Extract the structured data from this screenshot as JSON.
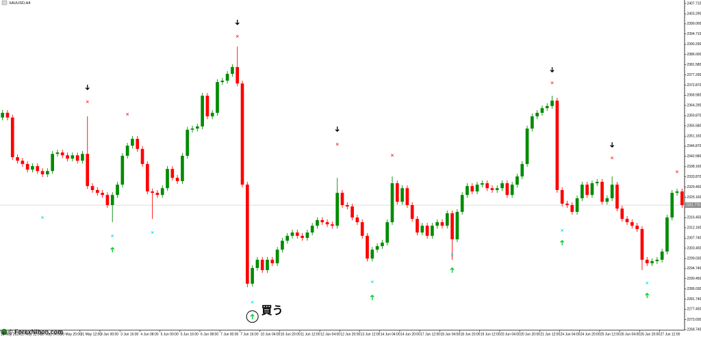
{
  "chart_data": {
    "type": "candlestick",
    "title": "XAUUSD,H4",
    "categories": [
      "28 May 2024",
      null,
      null,
      null,
      "29 May 12:00",
      null,
      null,
      null,
      "30 May 04:00",
      null,
      null,
      null,
      "30 May 20:00",
      null,
      null,
      null,
      "31 May 12:00",
      null,
      null,
      null,
      "3 Jun 00:00",
      null,
      null,
      null,
      "3 Jun 16:00",
      null,
      null,
      null,
      "4 Jun 08:00",
      null,
      null,
      null,
      "5 Jun 00:00",
      null,
      null,
      null,
      "5 Jun 16:00",
      null,
      null,
      null,
      "6 Jun 08:00",
      null,
      null,
      null,
      "7 Jun 00:00",
      null,
      null,
      null,
      "7 Jun 16:00",
      null,
      null,
      null,
      "10 Jun 04:00",
      null,
      null,
      null,
      "10 Jun 20:00",
      null,
      null,
      null,
      "11 Jun 12:00",
      null,
      null,
      null,
      "12 Jun 04:00",
      null,
      null,
      null,
      "12 Jun 20:00",
      null,
      null,
      null,
      "13 Jun 12:00",
      null,
      null,
      null,
      "14 Jun 04:00",
      null,
      null,
      null,
      "14 Jun 20:00",
      null,
      null,
      null,
      "17 Jun 12:00",
      null,
      null,
      null,
      "18 Jun 04:00",
      null,
      null,
      null,
      "18 Jun 20:00",
      null,
      null,
      null,
      "19 Jun 12:00",
      null,
      null,
      null,
      "20 Jun 04:00",
      null,
      null,
      null,
      "20 Jun 20:00",
      null,
      null,
      null,
      "21 Jun 12:00",
      null,
      null,
      null,
      "24 Jun 04:00",
      null,
      null,
      null,
      "24 Jun 20:00",
      null,
      null,
      null,
      "25 Jun 12:00",
      null,
      null,
      null,
      "26 Jun 04:00",
      null,
      null,
      null,
      "26 Jun 20:00",
      null,
      null,
      null,
      "27 Jun 12:00",
      null,
      null,
      null,
      null
    ],
    "open": [
      2359.1,
      2361.1,
      2359.1,
      2342.2,
      2340.7,
      2339.3,
      2336.9,
      2338.4,
      2336.3,
      2334.9,
      2336.3,
      2343.6,
      2344.2,
      2343.0,
      2341.6,
      2343.0,
      2340.7,
      2343.6,
      2329.9,
      2328.2,
      2327.0,
      2326.1,
      2321.8,
      2326.1,
      2330.5,
      2342.8,
      2347.1,
      2350.0,
      2345.7,
      2339.3,
      2327.6,
      2327.0,
      2326.1,
      2329.0,
      2337.2,
      2333.4,
      2332.0,
      2342.8,
      2353.9,
      2354.4,
      2355.3,
      2368.4,
      2359.6,
      2361.1,
      2374.2,
      2374.8,
      2377.7,
      2380.6,
      2373.6,
      2330.5,
      2288.3,
      2295.0,
      2298.5,
      2294.1,
      2298.5,
      2297.0,
      2302.8,
      2306.6,
      2308.7,
      2310.1,
      2308.7,
      2307.8,
      2310.1,
      2313.0,
      2315.4,
      2314.5,
      2313.6,
      2313.0,
      2327.0,
      2321.8,
      2321.2,
      2316.5,
      2314.5,
      2308.7,
      2299.0,
      2302.8,
      2304.3,
      2305.8,
      2314.5,
      2331.1,
      2323.2,
      2329.0,
      2321.8,
      2315.9,
      2310.1,
      2313.0,
      2308.7,
      2313.0,
      2314.5,
      2313.0,
      2318.3,
      2307.2,
      2318.9,
      2326.1,
      2329.9,
      2327.6,
      2330.5,
      2331.1,
      2329.0,
      2328.2,
      2329.0,
      2331.1,
      2326.1,
      2330.5,
      2334.0,
      2339.3,
      2354.4,
      2359.6,
      2361.1,
      2363.1,
      2364.0,
      2366.3,
      2328.2,
      2322.4,
      2321.8,
      2318.9,
      2324.7,
      2330.5,
      2326.1,
      2331.1,
      2331.7,
      2323.2,
      2324.7,
      2330.5,
      2320.3,
      2315.9,
      2314.5,
      2313.0,
      2311.6,
      2298.5,
      2297.0,
      2297.9,
      2298.5,
      2302.0,
      2316.5,
      2327.0,
      2327.6
    ],
    "high": [
      2362.3,
      2362.3,
      2360.3,
      2343.4,
      2341.9,
      2340.5,
      2339.6,
      2339.6,
      2337.5,
      2337.5,
      2344.8,
      2345.4,
      2345.4,
      2344.2,
      2344.2,
      2344.2,
      2344.8,
      2359.6,
      2331.1,
      2329.4,
      2328.2,
      2327.3,
      2327.3,
      2331.7,
      2344.0,
      2348.3,
      2351.2,
      2351.2,
      2346.9,
      2340.5,
      2328.8,
      2328.2,
      2330.2,
      2338.4,
      2338.4,
      2334.6,
      2344.0,
      2355.1,
      2355.6,
      2356.5,
      2369.6,
      2369.6,
      2362.3,
      2375.4,
      2376.0,
      2378.9,
      2381.8,
      2389.3,
      2374.8,
      2331.7,
      2296.2,
      2299.7,
      2299.7,
      2299.7,
      2299.7,
      2304.0,
      2307.8,
      2309.9,
      2311.3,
      2311.3,
      2309.9,
      2311.3,
      2314.2,
      2316.6,
      2316.6,
      2315.7,
      2314.8,
      2333.4,
      2328.2,
      2323.0,
      2322.4,
      2317.7,
      2315.7,
      2309.9,
      2304.0,
      2305.5,
      2307.0,
      2315.7,
      2334.0,
      2332.3,
      2330.2,
      2330.2,
      2323.0,
      2317.1,
      2314.2,
      2314.2,
      2314.2,
      2315.7,
      2315.7,
      2319.5,
      2319.5,
      2320.1,
      2327.3,
      2331.1,
      2331.1,
      2331.7,
      2332.3,
      2332.3,
      2330.2,
      2330.2,
      2332.3,
      2332.3,
      2331.7,
      2335.2,
      2340.5,
      2355.6,
      2360.8,
      2362.3,
      2364.3,
      2365.2,
      2368.4,
      2367.5,
      2329.4,
      2323.6,
      2323.0,
      2325.9,
      2331.7,
      2331.7,
      2332.3,
      2332.9,
      2332.9,
      2325.9,
      2334.0,
      2331.7,
      2321.5,
      2317.1,
      2315.7,
      2314.2,
      2312.8,
      2299.7,
      2299.1,
      2299.7,
      2303.2,
      2317.7,
      2328.2,
      2328.8,
      2328.8
    ],
    "low": [
      2357.9,
      2357.9,
      2341.0,
      2339.5,
      2338.1,
      2335.7,
      2335.7,
      2335.1,
      2333.7,
      2333.7,
      2335.1,
      2342.4,
      2341.8,
      2340.4,
      2340.4,
      2339.5,
      2339.5,
      2328.7,
      2327.0,
      2325.8,
      2324.9,
      2320.6,
      2314.5,
      2324.9,
      2329.3,
      2341.6,
      2345.9,
      2344.5,
      2338.1,
      2326.4,
      2315.9,
      2324.9,
      2324.9,
      2327.8,
      2332.2,
      2330.8,
      2330.8,
      2341.6,
      2352.7,
      2353.2,
      2354.1,
      2358.4,
      2358.4,
      2359.9,
      2373.0,
      2373.6,
      2376.5,
      2372.4,
      2329.3,
      2286.8,
      2287.1,
      2293.8,
      2292.9,
      2292.9,
      2295.8,
      2295.8,
      2301.6,
      2305.4,
      2307.5,
      2307.5,
      2306.6,
      2306.6,
      2308.9,
      2311.8,
      2313.3,
      2312.4,
      2311.8,
      2311.8,
      2320.6,
      2320.0,
      2315.3,
      2313.3,
      2307.5,
      2297.8,
      2297.8,
      2301.6,
      2303.1,
      2304.6,
      2313.3,
      2322.0,
      2322.0,
      2320.6,
      2314.7,
      2308.9,
      2308.9,
      2307.5,
      2307.5,
      2311.8,
      2311.8,
      2311.8,
      2298.5,
      2306.0,
      2317.7,
      2324.9,
      2326.4,
      2326.4,
      2329.3,
      2327.8,
      2327.0,
      2327.0,
      2327.8,
      2324.9,
      2324.9,
      2329.3,
      2332.8,
      2338.1,
      2353.2,
      2358.4,
      2359.9,
      2361.9,
      2362.8,
      2327.0,
      2321.2,
      2320.6,
      2317.7,
      2317.7,
      2323.5,
      2324.9,
      2324.9,
      2329.9,
      2322.0,
      2322.0,
      2323.5,
      2319.1,
      2314.7,
      2313.3,
      2311.8,
      2310.4,
      2294.1,
      2295.8,
      2295.8,
      2296.7,
      2297.3,
      2300.8,
      2315.3,
      2325.8,
      2320.6
    ],
    "close": [
      2361.1,
      2359.1,
      2342.2,
      2340.7,
      2339.3,
      2336.9,
      2338.4,
      2336.3,
      2334.9,
      2336.3,
      2343.6,
      2344.2,
      2343.0,
      2341.6,
      2343.0,
      2340.7,
      2343.6,
      2329.9,
      2328.2,
      2327.0,
      2326.1,
      2321.8,
      2326.1,
      2330.5,
      2342.8,
      2347.1,
      2350.0,
      2345.7,
      2339.3,
      2327.6,
      2327.0,
      2326.1,
      2329.0,
      2337.2,
      2333.4,
      2332.0,
      2342.8,
      2353.9,
      2354.4,
      2355.3,
      2368.4,
      2359.6,
      2361.1,
      2374.2,
      2374.8,
      2377.7,
      2380.6,
      2373.6,
      2330.5,
      2288.3,
      2295.0,
      2298.5,
      2294.1,
      2298.5,
      2297.0,
      2302.8,
      2306.6,
      2308.7,
      2310.1,
      2308.7,
      2307.8,
      2310.1,
      2313.0,
      2315.4,
      2314.5,
      2313.6,
      2313.0,
      2327.0,
      2321.8,
      2321.2,
      2316.5,
      2314.5,
      2308.7,
      2299.0,
      2302.8,
      2304.3,
      2305.8,
      2314.5,
      2331.1,
      2323.2,
      2329.0,
      2321.8,
      2315.9,
      2310.1,
      2313.0,
      2308.7,
      2313.0,
      2314.5,
      2313.0,
      2318.3,
      2307.2,
      2318.9,
      2326.1,
      2329.9,
      2327.6,
      2330.5,
      2331.1,
      2329.0,
      2328.2,
      2329.0,
      2331.1,
      2326.1,
      2330.5,
      2334.0,
      2339.3,
      2354.4,
      2359.6,
      2361.1,
      2363.1,
      2364.0,
      2366.3,
      2328.2,
      2322.4,
      2321.8,
      2318.9,
      2324.7,
      2330.5,
      2326.1,
      2331.1,
      2331.7,
      2323.2,
      2324.7,
      2330.5,
      2320.3,
      2315.9,
      2314.5,
      2313.0,
      2311.6,
      2298.5,
      2297.0,
      2297.9,
      2298.5,
      2302.0,
      2316.5,
      2327.0,
      2327.6,
      2321.8
    ],
    "up_color": "#008c00",
    "down_color": "#ff0000",
    "ylim": [
      2268.5,
      2409.17
    ],
    "yticks": [
      {
        "value": 2407.71,
        "label": "2407.710"
      },
      {
        "value": 2403.29,
        "label": "2403.290"
      },
      {
        "value": 2399.0,
        "label": "2399.000"
      },
      {
        "value": 2394.71,
        "label": "2394.710"
      },
      {
        "value": 2390.29,
        "label": "2390.290"
      },
      {
        "value": 2386.0,
        "label": "2386.000"
      },
      {
        "value": 2381.58,
        "label": "2381.580"
      },
      {
        "value": 2377.29,
        "label": "2377.290"
      },
      {
        "value": 2372.87,
        "label": "2372.870"
      },
      {
        "value": 2368.58,
        "label": "2368.580"
      },
      {
        "value": 2364.29,
        "label": "2364.290"
      },
      {
        "value": 2359.87,
        "label": "2359.870"
      },
      {
        "value": 2355.58,
        "label": "2355.580"
      },
      {
        "value": 2351.16,
        "label": "2351.160"
      },
      {
        "value": 2346.87,
        "label": "2346.870"
      },
      {
        "value": 2342.58,
        "label": "2342.580"
      },
      {
        "value": 2338.16,
        "label": "2338.160"
      },
      {
        "value": 2333.87,
        "label": "2333.870"
      },
      {
        "value": 2329.45,
        "label": "2329.450"
      },
      {
        "value": 2325.16,
        "label": "2325.160"
      },
      {
        "value": 2316.45,
        "label": "2316.450"
      },
      {
        "value": 2312.16,
        "label": "2312.160"
      },
      {
        "value": 2307.74,
        "label": "2307.740"
      },
      {
        "value": 2303.45,
        "label": "2303.450"
      },
      {
        "value": 2299.03,
        "label": "2299.030"
      },
      {
        "value": 2294.74,
        "label": "2294.740"
      },
      {
        "value": 2290.45,
        "label": "2290.450"
      },
      {
        "value": 2286.03,
        "label": "2286.030"
      },
      {
        "value": 2281.74,
        "label": "2281.740"
      },
      {
        "value": 2277.45,
        "label": "2277.450"
      },
      {
        "value": 2273.03,
        "label": "2273.030"
      },
      {
        "value": 2268.74,
        "label": "2268.740"
      }
    ],
    "current_price": 2321.775,
    "signals": {
      "sell_arrows": {
        "color": "#000000",
        "index": [
          17,
          47,
          67,
          110,
          122
        ],
        "values": [
          2371.9,
          2399.6,
          2354.1,
          2379.4,
          2347.4
        ]
      },
      "sell_marks": {
        "color": "#ff3030",
        "index": [
          17,
          25,
          47,
          67,
          78,
          110,
          122,
          135
        ],
        "values": [
          2365.8,
          2360.5,
          2393.7,
          2347.7,
          2343.0,
          2373.9,
          2341.9,
          2336.0
        ]
      },
      "buy_marks": {
        "color": "#00e5ff",
        "index": [
          8,
          22,
          30,
          50,
          74,
          90,
          112,
          129
        ],
        "values": [
          2316.5,
          2308.7,
          2310.1,
          2280.4,
          2289.1,
          2300.5,
          2311.0,
          2288.6
        ]
      },
      "buy_arrows": {
        "color": "#00d030",
        "index": [
          22,
          50,
          74,
          90,
          112,
          129
        ],
        "values": [
          2302.8,
          2274.3,
          2282.5,
          2294.1,
          2305.8,
          2283.3
        ]
      }
    },
    "annotation": "買う"
  },
  "watermark": "© ForexNihon.com"
}
